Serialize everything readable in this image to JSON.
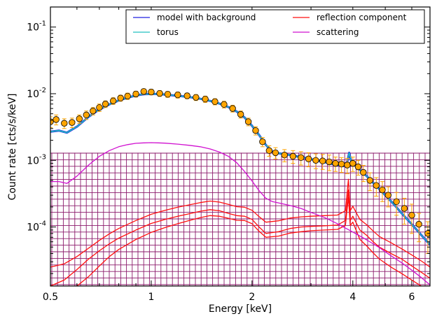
{
  "chart_data": {
    "type": "line",
    "title": "",
    "xlabel": "Energy [keV]",
    "ylabel": "Count rate [cts/s/keV]",
    "xscale": "log",
    "yscale": "log",
    "xlim": [
      0.5,
      6.8
    ],
    "ylim": [
      1.3e-05,
      0.2
    ],
    "x_ticks": [
      0.5,
      1,
      2,
      4,
      6
    ],
    "x_tick_labels": [
      "0.5",
      "1",
      "2",
      "4",
      "6"
    ],
    "y_ticks": [
      0.0001,
      0.001,
      0.01,
      0.1
    ],
    "y_tick_labels": [
      "10",
      "10",
      "10",
      "10"
    ],
    "y_tick_exponents": [
      "-4",
      "-3",
      "-2",
      "-1"
    ],
    "legend_position": "top-right",
    "legend": [
      {
        "label": "model with background",
        "color": "#2020e0"
      },
      {
        "label": "reflection component",
        "color": "#ff1010"
      },
      {
        "label": "torus",
        "color": "#20c0c0"
      },
      {
        "label": "scattering",
        "color": "#d010d0"
      }
    ],
    "data_points": {
      "name": "data",
      "marker_color": "#ffa500",
      "error_color": "#ffa500",
      "x": [
        0.5,
        0.52,
        0.55,
        0.58,
        0.61,
        0.64,
        0.67,
        0.7,
        0.73,
        0.77,
        0.81,
        0.85,
        0.9,
        0.95,
        1.0,
        1.06,
        1.12,
        1.2,
        1.28,
        1.36,
        1.45,
        1.55,
        1.65,
        1.75,
        1.85,
        1.95,
        2.05,
        2.15,
        2.25,
        2.35,
        2.5,
        2.65,
        2.8,
        2.95,
        3.1,
        3.25,
        3.4,
        3.55,
        3.7,
        3.85,
        4.0,
        4.15,
        4.3,
        4.5,
        4.7,
        4.9,
        5.1,
        5.4,
        5.7,
        6.0,
        6.3,
        6.7
      ],
      "y": [
        0.0038,
        0.0041,
        0.0036,
        0.0037,
        0.0042,
        0.0048,
        0.0055,
        0.0062,
        0.007,
        0.0078,
        0.0086,
        0.0092,
        0.0099,
        0.0108,
        0.0106,
        0.0101,
        0.0098,
        0.0096,
        0.0093,
        0.0088,
        0.0083,
        0.0076,
        0.0069,
        0.006,
        0.0049,
        0.0038,
        0.0028,
        0.0019,
        0.0014,
        0.0013,
        0.0012,
        0.00115,
        0.0011,
        0.00105,
        0.001,
        0.00098,
        0.00095,
        0.0009,
        0.00088,
        0.00085,
        0.0009,
        0.0008,
        0.00066,
        0.0005,
        0.00042,
        0.00036,
        0.0003,
        0.00024,
        0.00019,
        0.00015,
        0.00011,
        8e-05
      ],
      "err": [
        0.0007,
        0.0007,
        0.0006,
        0.0006,
        0.0006,
        0.0007,
        0.0007,
        0.0008,
        0.0008,
        0.0009,
        0.0009,
        0.001,
        0.001,
        0.001,
        0.001,
        0.001,
        0.001,
        0.001,
        0.0009,
        0.0009,
        0.0009,
        0.0008,
        0.0008,
        0.0007,
        0.0006,
        0.0005,
        0.0004,
        0.0003,
        0.00025,
        0.00025,
        0.00025,
        0.00025,
        0.00025,
        0.00025,
        0.00025,
        0.00025,
        0.00025,
        0.00022,
        0.00022,
        0.00022,
        0.00022,
        0.0002,
        0.00018,
        0.00015,
        0.00013,
        0.00012,
        0.0001,
        9e-05,
        8e-05,
        7e-05,
        5e-05,
        4e-05
      ]
    },
    "series": [
      {
        "name": "model with background",
        "color": "#2020e0",
        "x": [
          0.5,
          0.53,
          0.56,
          0.6,
          0.65,
          0.7,
          0.75,
          0.8,
          0.85,
          0.9,
          0.95,
          1.0,
          1.05,
          1.1,
          1.2,
          1.3,
          1.4,
          1.5,
          1.6,
          1.7,
          1.8,
          1.9,
          2.0,
          2.1,
          2.2,
          2.3,
          2.4,
          2.6,
          2.8,
          3.0,
          3.2,
          3.4,
          3.6,
          3.75,
          3.85,
          3.9,
          3.95,
          4.05,
          4.2,
          4.4,
          4.6,
          4.8,
          5.0,
          5.3,
          5.6,
          6.0,
          6.4,
          6.8
        ],
        "y": [
          0.0027,
          0.0028,
          0.0026,
          0.0032,
          0.0045,
          0.0058,
          0.0069,
          0.0079,
          0.0087,
          0.0094,
          0.0098,
          0.0099,
          0.0099,
          0.0097,
          0.0093,
          0.0089,
          0.0084,
          0.0078,
          0.0071,
          0.0063,
          0.0054,
          0.0044,
          0.0033,
          0.0024,
          0.0017,
          0.00135,
          0.00128,
          0.0012,
          0.00112,
          0.00104,
          0.00097,
          0.0009,
          0.00085,
          0.00082,
          0.00095,
          0.0013,
          0.001,
          0.00085,
          0.00072,
          0.00058,
          0.00046,
          0.00037,
          0.0003,
          0.00022,
          0.00016,
          0.00011,
          7.6e-05,
          5.4e-05
        ]
      },
      {
        "name": "torus",
        "color": "#20c0c0",
        "x": [
          0.5,
          0.53,
          0.56,
          0.6,
          0.65,
          0.7,
          0.75,
          0.8,
          0.85,
          0.9,
          0.95,
          1.0,
          1.05,
          1.1,
          1.2,
          1.3,
          1.4,
          1.5,
          1.6,
          1.7,
          1.8,
          1.9,
          2.0,
          2.1,
          2.2,
          2.3,
          2.4,
          2.6,
          2.8,
          3.0,
          3.2,
          3.4,
          3.6,
          3.75,
          3.85,
          3.9,
          3.95,
          4.05,
          4.2,
          4.4,
          4.6,
          4.8,
          5.0,
          5.3,
          5.6,
          6.0,
          6.4,
          6.8
        ],
        "y": [
          0.0027,
          0.0028,
          0.0026,
          0.0032,
          0.0045,
          0.0058,
          0.0069,
          0.0079,
          0.0087,
          0.0094,
          0.0098,
          0.0099,
          0.0099,
          0.0097,
          0.0093,
          0.0089,
          0.0084,
          0.0078,
          0.0071,
          0.0063,
          0.0054,
          0.0044,
          0.0033,
          0.0024,
          0.0017,
          0.00135,
          0.00128,
          0.0012,
          0.00112,
          0.00104,
          0.00097,
          0.0009,
          0.00085,
          0.00082,
          0.00095,
          0.0013,
          0.001,
          0.00085,
          0.00072,
          0.00058,
          0.00046,
          0.00037,
          0.0003,
          0.00022,
          0.00016,
          0.00011,
          7.6e-05,
          5.4e-05
        ]
      },
      {
        "name": "scattering",
        "color": "#d010d0",
        "x": [
          0.5,
          0.53,
          0.56,
          0.6,
          0.65,
          0.7,
          0.75,
          0.8,
          0.85,
          0.9,
          0.95,
          1.0,
          1.05,
          1.1,
          1.2,
          1.3,
          1.4,
          1.5,
          1.6,
          1.7,
          1.8,
          1.9,
          2.0,
          2.1,
          2.2,
          2.3,
          2.4,
          2.6,
          2.8,
          3.0,
          3.3,
          3.6,
          4.0,
          4.4,
          4.8,
          5.2,
          5.6,
          6.0,
          6.4,
          6.8
        ],
        "y": [
          0.00048,
          0.00048,
          0.00045,
          0.00058,
          0.00085,
          0.00115,
          0.0014,
          0.0016,
          0.00172,
          0.0018,
          0.00183,
          0.00184,
          0.00183,
          0.00181,
          0.00175,
          0.00168,
          0.0016,
          0.00148,
          0.00133,
          0.00115,
          0.00092,
          0.00068,
          0.00049,
          0.00035,
          0.00027,
          0.00024,
          0.00023,
          0.00021,
          0.00019,
          0.000165,
          0.000138,
          0.000112,
          8.4e-05,
          6.4e-05,
          4.9e-05,
          3.7e-05,
          2.9e-05,
          2.25e-05,
          1.75e-05,
          1.35e-05
        ]
      },
      {
        "name": "reflection component",
        "color": "#ff1010",
        "x": [
          0.5,
          0.55,
          0.6,
          0.65,
          0.7,
          0.75,
          0.8,
          0.9,
          1.0,
          1.1,
          1.2,
          1.3,
          1.4,
          1.5,
          1.6,
          1.7,
          1.8,
          1.9,
          2.0,
          2.1,
          2.2,
          2.4,
          2.6,
          2.8,
          3.0,
          3.3,
          3.6,
          3.8,
          3.88,
          3.93,
          4.0,
          4.2,
          4.4,
          4.6,
          4.8,
          5.2,
          5.6,
          6.0,
          6.4,
          6.8
        ],
        "y": [
          1.3e-05,
          1.6e-05,
          2.3e-05,
          3.3e-05,
          4.4e-05,
          5.6e-05,
          6.8e-05,
          9e-05,
          0.000113,
          0.00013,
          0.000145,
          0.000158,
          0.000172,
          0.000182,
          0.000175,
          0.00016,
          0.000148,
          0.000145,
          0.00013,
          0.0001,
          8e-05,
          8.5e-05,
          9.5e-05,
          0.0001,
          0.000102,
          0.000104,
          0.000107,
          0.000125,
          0.00036,
          0.000125,
          0.000145,
          9e-05,
          7.5e-05,
          6e-05,
          5e-05,
          4e-05,
          3.3e-05,
          2.6e-05,
          2.1e-05,
          1.7e-05
        ]
      },
      {
        "name": "reflection component",
        "color": "#ff1010",
        "x": [
          0.5,
          0.55,
          0.6,
          0.65,
          0.7,
          0.75,
          0.8,
          0.9,
          1.0,
          1.1,
          1.2,
          1.3,
          1.4,
          1.5,
          1.6,
          1.7,
          1.8,
          1.9,
          2.0,
          2.1,
          2.2,
          2.4,
          2.6,
          2.8,
          3.0,
          3.3,
          3.6,
          3.8,
          3.88,
          3.93,
          4.0,
          4.2,
          4.4,
          4.6,
          4.8,
          5.2,
          5.6,
          6.0,
          6.4,
          6.8
        ],
        "y": [
          1.2e-05,
          1.2e-05,
          1.3e-05,
          1.8e-05,
          2.6e-05,
          3.6e-05,
          4.6e-05,
          6.5e-05,
          8.3e-05,
          9.8e-05,
          0.000112,
          0.000125,
          0.000138,
          0.000148,
          0.000145,
          0.000135,
          0.000126,
          0.000125,
          0.000112,
          8.6e-05,
          7e-05,
          7.3e-05,
          8.1e-05,
          8.5e-05,
          8.8e-05,
          9e-05,
          9.2e-05,
          0.000105,
          0.00028,
          0.000105,
          0.000118,
          6.5e-05,
          5.2e-05,
          4.1e-05,
          3.3e-05,
          2.5e-05,
          2e-05,
          1.6e-05,
          1.3e-05,
          1.1e-05
        ]
      },
      {
        "name": "reflection component",
        "color": "#ff1010",
        "x": [
          0.5,
          0.55,
          0.6,
          0.65,
          0.7,
          0.75,
          0.8,
          0.9,
          1.0,
          1.1,
          1.2,
          1.3,
          1.4,
          1.5,
          1.6,
          1.7,
          1.8,
          1.9,
          2.0,
          2.1,
          2.2,
          2.4,
          2.6,
          2.8,
          3.0,
          3.3,
          3.6,
          3.8,
          3.88,
          3.93,
          4.0,
          4.2,
          4.4,
          4.6,
          4.8,
          5.2,
          5.6,
          6.0,
          6.4,
          6.8
        ],
        "y": [
          2.5e-05,
          2.8e-05,
          3.6e-05,
          4.8e-05,
          6.3e-05,
          7.9e-05,
          9.5e-05,
          0.000125,
          0.000155,
          0.000178,
          0.000198,
          0.000215,
          0.000232,
          0.000245,
          0.000236,
          0.000218,
          0.000202,
          0.000198,
          0.000178,
          0.000143,
          0.000118,
          0.000124,
          0.000136,
          0.000142,
          0.000145,
          0.000148,
          0.000151,
          0.000175,
          0.00052,
          0.000175,
          0.000205,
          0.00013,
          0.000108,
          8.7e-05,
          7.2e-05,
          5.8e-05,
          4.7e-05,
          3.8e-05,
          3.1e-05,
          2.5e-05
        ]
      }
    ]
  }
}
